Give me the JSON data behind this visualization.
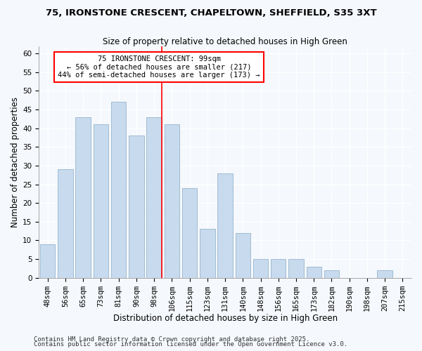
{
  "title": "75, IRONSTONE CRESCENT, CHAPELTOWN, SHEFFIELD, S35 3XT",
  "subtitle": "Size of property relative to detached houses in High Green",
  "xlabel": "Distribution of detached houses by size in High Green",
  "ylabel": "Number of detached properties",
  "bar_color": "#c8daed",
  "bar_edge_color": "#a0bcd4",
  "background_color": "#f5f8fc",
  "grid_color": "#ffffff",
  "categories": [
    "48sqm",
    "56sqm",
    "65sqm",
    "73sqm",
    "81sqm",
    "90sqm",
    "98sqm",
    "106sqm",
    "115sqm",
    "123sqm",
    "131sqm",
    "140sqm",
    "148sqm",
    "156sqm",
    "165sqm",
    "173sqm",
    "182sqm",
    "190sqm",
    "198sqm",
    "207sqm",
    "215sqm"
  ],
  "values": [
    9,
    29,
    43,
    41,
    47,
    38,
    43,
    41,
    24,
    13,
    28,
    12,
    5,
    5,
    5,
    3,
    2,
    0,
    0,
    2,
    0
  ],
  "ylim": [
    0,
    62
  ],
  "yticks": [
    0,
    5,
    10,
    15,
    20,
    25,
    30,
    35,
    40,
    45,
    50,
    55,
    60
  ],
  "ref_bar_index": 6,
  "reference_line_label": "75 IRONSTONE CRESCENT: 99sqm",
  "annotation_line1": "← 56% of detached houses are smaller (217)",
  "annotation_line2": "44% of semi-detached houses are larger (173) →",
  "footer1": "Contains HM Land Registry data © Crown copyright and database right 2025.",
  "footer2": "Contains public sector information licensed under the Open Government Licence v3.0.",
  "title_fontsize": 9.5,
  "subtitle_fontsize": 8.5,
  "axis_label_fontsize": 8.5,
  "tick_fontsize": 7.5,
  "annotation_fontsize": 7.5,
  "footer_fontsize": 6.5
}
